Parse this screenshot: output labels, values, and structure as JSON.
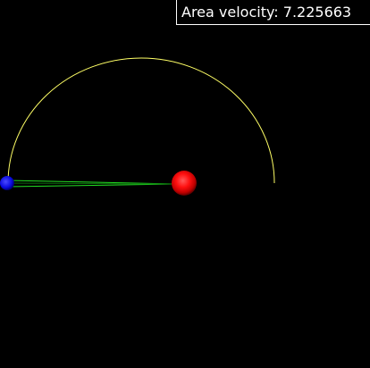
{
  "readout": {
    "label": "Area velocity:",
    "value": "7.225663"
  },
  "colors": {
    "background": "#000000",
    "orbit_path": "#ffff66",
    "area_sweep": "#22dd22",
    "sun": "#ff1a1a",
    "planet": "#1a1aff",
    "readout_text": "#ffffff",
    "readout_border": "#ffffff"
  }
}
